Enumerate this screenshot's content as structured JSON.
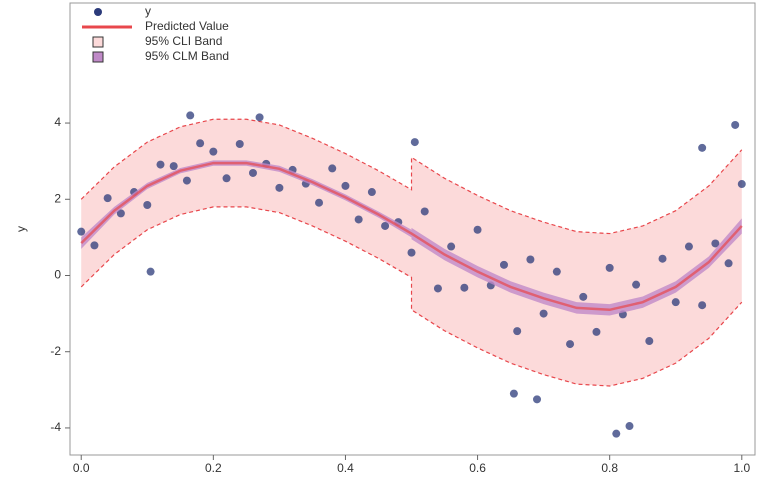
{
  "chart_data": {
    "type": "scatter",
    "ylabel": "y",
    "xlim": [
      -0.017,
      1.02
    ],
    "ylim": [
      -4.71,
      7.15
    ],
    "xticks": [
      {
        "value": 0,
        "label": "0.0"
      },
      0.2,
      0.4,
      0.6,
      0.8,
      {
        "value": 1,
        "label": "1.0"
      }
    ],
    "yticks": [
      -4,
      -2,
      0,
      2,
      4
    ],
    "points": {
      "name": "y",
      "color": "#2b3a7a",
      "x": [
        0,
        0.02,
        0.04,
        0.06,
        0.08,
        0.1,
        0.12,
        0.14,
        0.16,
        0.18,
        0.2,
        0.22,
        0.24,
        0.26,
        0.28,
        0.3,
        0.32,
        0.34,
        0.36,
        0.38,
        0.4,
        0.42,
        0.44,
        0.46,
        0.48,
        0.5,
        0.52,
        0.54,
        0.56,
        0.58,
        0.6,
        0.62,
        0.64,
        0.66,
        0.68,
        0.7,
        0.72,
        0.74,
        0.76,
        0.78,
        0.8,
        0.82,
        0.84,
        0.86,
        0.88,
        0.9,
        0.92,
        0.94,
        0.96,
        0.98,
        1.0,
        0.105,
        0.165,
        0.27,
        0.505,
        0.81,
        0.83,
        0.99,
        0.94,
        0.655,
        0.69
      ],
      "values": [
        1.15,
        0.79,
        2.03,
        1.63,
        2.19,
        1.85,
        2.91,
        2.87,
        2.49,
        3.47,
        3.25,
        2.55,
        3.45,
        2.69,
        2.93,
        2.3,
        2.77,
        2.41,
        1.91,
        2.81,
        2.35,
        1.47,
        2.19,
        1.3,
        1.4,
        0.6,
        1.68,
        -0.34,
        0.76,
        -0.32,
        1.2,
        -0.26,
        0.28,
        -1.46,
        0.42,
        -1.0,
        0.1,
        -1.8,
        -0.56,
        -1.48,
        0.2,
        -1.02,
        -0.24,
        -1.72,
        0.44,
        -0.7,
        0.76,
        -0.78,
        0.84,
        0.32,
        2.4,
        0.1,
        4.2,
        4.15,
        3.5,
        -4.15,
        -3.95,
        3.95,
        3.35,
        -3.1,
        -3.25
      ]
    },
    "fit": {
      "name": "Predicted Value",
      "color": "#e8474c",
      "x": [
        0,
        0.05,
        0.1,
        0.15,
        0.2,
        0.25,
        0.3,
        0.35,
        0.4,
        0.45,
        0.5,
        0.5,
        0.55,
        0.6,
        0.65,
        0.7,
        0.75,
        0.8,
        0.85,
        0.9,
        0.95,
        1.0
      ],
      "values": [
        0.85,
        1.7,
        2.35,
        2.75,
        2.95,
        2.95,
        2.8,
        2.45,
        2.05,
        1.6,
        1.1,
        1.1,
        0.55,
        0.1,
        -0.3,
        -0.6,
        -0.85,
        -0.9,
        -0.7,
        -0.3,
        0.35,
        1.3
      ],
      "cli": {
        "name": "95% CLI Band",
        "color": "#fcdada",
        "lower": [
          -0.3,
          0.55,
          1.2,
          1.6,
          1.8,
          1.8,
          1.65,
          1.3,
          0.9,
          0.45,
          -0.05,
          -0.9,
          -1.45,
          -1.9,
          -2.3,
          -2.6,
          -2.85,
          -2.9,
          -2.7,
          -2.3,
          -1.65,
          -0.7
        ],
        "upper": [
          2.0,
          2.85,
          3.5,
          3.9,
          4.1,
          4.1,
          3.95,
          3.6,
          3.2,
          2.75,
          2.25,
          3.1,
          2.55,
          2.1,
          1.7,
          1.4,
          1.15,
          1.1,
          1.3,
          1.7,
          2.35,
          3.3
        ]
      },
      "clm": {
        "name": "95% CLM Band",
        "color": "#c08ac8",
        "lower": [
          0.7,
          1.6,
          2.27,
          2.68,
          2.88,
          2.88,
          2.72,
          2.37,
          1.97,
          1.52,
          1.0,
          0.95,
          0.4,
          -0.05,
          -0.45,
          -0.75,
          -1.0,
          -1.05,
          -0.85,
          -0.45,
          0.2,
          1.1
        ],
        "upper": [
          1.0,
          1.8,
          2.43,
          2.82,
          3.02,
          3.02,
          2.88,
          2.53,
          2.13,
          1.68,
          1.2,
          1.25,
          0.7,
          0.25,
          -0.15,
          -0.45,
          -0.7,
          -0.75,
          -0.55,
          -0.15,
          0.5,
          1.5
        ]
      }
    }
  }
}
